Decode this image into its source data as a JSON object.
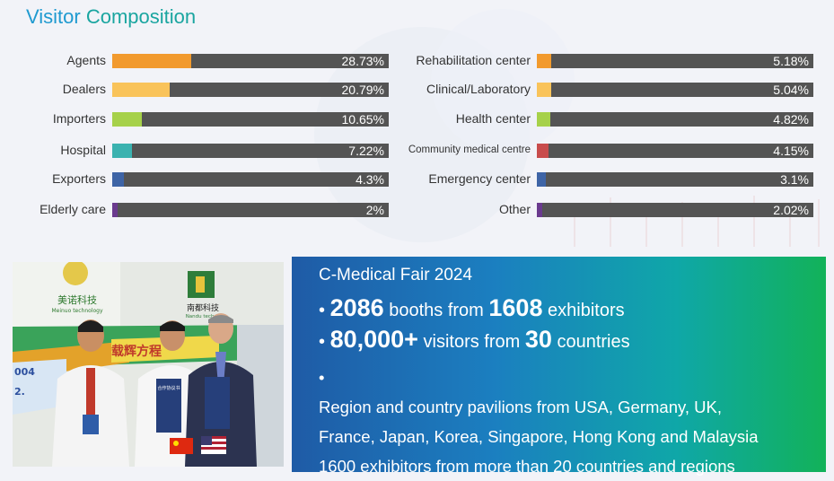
{
  "title": {
    "word1": "Visitor",
    "word2": "Composition"
  },
  "chart_data": {
    "type": "bar",
    "orientation": "horizontal",
    "title": "Visitor Composition",
    "unit": "%",
    "xlim": [
      0,
      100
    ],
    "left": [
      {
        "label": "Agents",
        "value": 28.73,
        "value_text": "28.73%",
        "color": "#f29a2e"
      },
      {
        "label": "Dealers",
        "value": 20.79,
        "value_text": "20.79%",
        "color": "#f9c35a"
      },
      {
        "label": "Importers",
        "value": 10.65,
        "value_text": "10.65%",
        "color": "#a6d14a"
      },
      {
        "label": "Hospital",
        "value": 7.22,
        "value_text": "7.22%",
        "color": "#3bb2b0"
      },
      {
        "label": "Exporters",
        "value": 4.3,
        "value_text": "4.3%",
        "color": "#3e64a6"
      },
      {
        "label": "Elderly care",
        "value": 2,
        "value_text": "2%",
        "color": "#6a3a8e"
      }
    ],
    "right": [
      {
        "label": "Rehabilitation center",
        "value": 5.18,
        "value_text": "5.18%",
        "color": "#f29a2e"
      },
      {
        "label": "Clinical/Laboratory",
        "value": 5.04,
        "value_text": "5.04%",
        "color": "#f9c35a"
      },
      {
        "label": "Health center",
        "value": 4.82,
        "value_text": "4.82%",
        "color": "#a6d14a"
      },
      {
        "label": "Community medical centre",
        "value": 4.15,
        "value_text": "4.15%",
        "color": "#c84c4c"
      },
      {
        "label": "Emergency center",
        "value": 3.1,
        "value_text": "3.1%",
        "color": "#3e64a6"
      },
      {
        "label": "Other",
        "value": 2.02,
        "value_text": "2.02%",
        "color": "#6a3a8e"
      }
    ]
  },
  "photo": {
    "sign1_name": "美诺科技",
    "sign1_sub": "Meinuo technology",
    "sign2_name": "南都科技",
    "sign2_sub": "Nandu techno",
    "banner_text": "载辉方程",
    "banner_left_a": "004",
    "banner_left_b": "2.",
    "doc_text": "合作协议书"
  },
  "panel": {
    "fair_name": "C-Medical Fair 2024",
    "bullet": "•",
    "booths_num": "2086",
    "booths_mid": "booths from",
    "exhibitors_num": "1608",
    "exhibitors_word": "exhibitors",
    "visitors_num": "80,000+",
    "visitors_mid": "visitors from",
    "countries_num": "30",
    "countries_word": "countries",
    "pavilion_line1": "Region and country pavilions from USA, Germany, UK,",
    "pavilion_line2": "France, Japan, Korea, Singapore, Hong Kong and Malaysia",
    "pavilion_line3": "1600 exhibitors from more than 20 countries and regions"
  }
}
